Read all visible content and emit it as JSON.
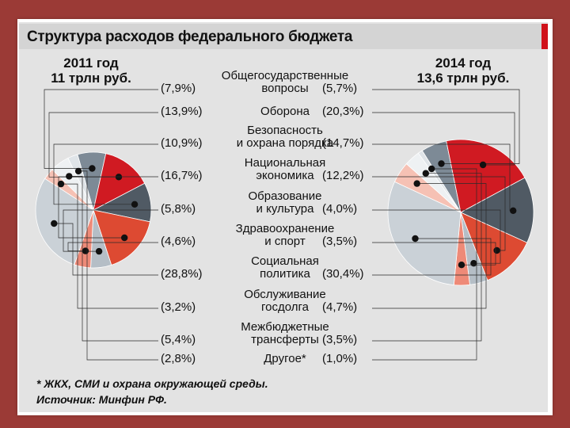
{
  "chart_data": {
    "type": "pie",
    "title": "Структура расходов федерального бюджета",
    "footnote": "* ЖКХ, СМИ и охрана окружающей среды.",
    "source": "Источник: Минфин РФ.",
    "colors": {
      "grey": "#7d8a96",
      "red": "#d01a22",
      "red_orange": "#dd4a32",
      "light_grey": "#b5bec6",
      "light_grey_2": "#cad1d7",
      "salmon": "#ee8a78",
      "pale_salmon": "#f6c1b4",
      "dark_grey": "#505a64",
      "pale": "#eef1f3",
      "lightest": "#dfe4e8"
    },
    "pies": [
      {
        "year_label": "2011 год",
        "total_label": "11 трлн руб.",
        "start_angle_deg": -16
      },
      {
        "year_label": "2014 год",
        "total_label": "13,6 трлн руб.",
        "start_angle_deg": -32
      }
    ],
    "categories": [
      {
        "label": [
          "Общегосударственные",
          "вопросы"
        ],
        "v2011": 7.9,
        "v2014": 5.7,
        "p2011": "(7,9%)",
        "p2014": "(5,7%)",
        "color_key": "grey"
      },
      {
        "label": [
          "Оборона"
        ],
        "v2011": 13.9,
        "v2014": 20.3,
        "p2011": "(13,9%)",
        "p2014": "(20,3%)",
        "color_key": "red"
      },
      {
        "label": [
          "Безопасность",
          "и охрана порядка"
        ],
        "v2011": 10.9,
        "v2014": 14.7,
        "p2011": "(10,9%)",
        "p2014": "(14,7%)",
        "color_key": "dark_grey"
      },
      {
        "label": [
          "Национальная",
          "экономика"
        ],
        "v2011": 16.7,
        "v2014": 12.2,
        "p2011": "(16,7%)",
        "p2014": "(12,2%)",
        "color_key": "red_orange"
      },
      {
        "label": [
          "Образование",
          "и культура"
        ],
        "v2011": 5.8,
        "v2014": 4.0,
        "p2011": "(5,8%)",
        "p2014": "(4,0%)",
        "color_key": "light_grey"
      },
      {
        "label": [
          "Здравоохранение",
          "и спорт"
        ],
        "v2011": 4.6,
        "v2014": 3.5,
        "p2011": "(4,6%)",
        "p2014": "(3,5%)",
        "color_key": "salmon"
      },
      {
        "label": [
          "Социальная",
          "политика"
        ],
        "v2011": 28.8,
        "v2014": 30.4,
        "p2011": "(28,8%)",
        "p2014": "(30,4%)",
        "color_key": "light_grey_2"
      },
      {
        "label": [
          "Обслуживание",
          "госдолга"
        ],
        "v2011": 3.2,
        "v2014": 4.7,
        "p2011": "(3,2%)",
        "p2014": "(4,7%)",
        "color_key": "pale_salmon"
      },
      {
        "label": [
          "Межбюджетные",
          "трансферты"
        ],
        "v2011": 5.4,
        "v2014": 3.5,
        "p2011": "(5,4%)",
        "p2014": "(3,5%)",
        "color_key": "pale"
      },
      {
        "label": [
          "Другое*"
        ],
        "v2011": 2.8,
        "v2014": 1.0,
        "p2011": "(2,8%)",
        "p2014": "(1,0%)",
        "color_key": "lightest"
      }
    ]
  }
}
